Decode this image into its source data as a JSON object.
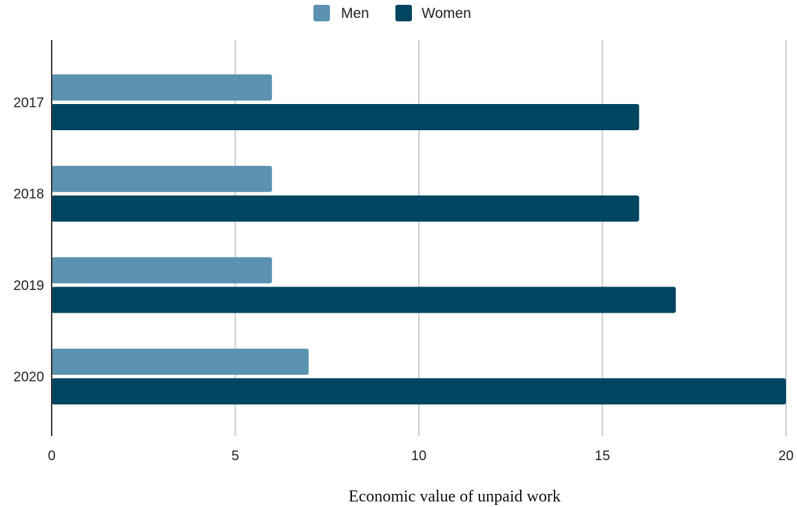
{
  "chart_data": {
    "type": "bar",
    "orientation": "horizontal",
    "categories": [
      "2017",
      "2018",
      "2019",
      "2020"
    ],
    "series": [
      {
        "name": "Men",
        "values": [
          6,
          6,
          6,
          7
        ],
        "color": "#5b92b0"
      },
      {
        "name": "Women",
        "values": [
          16,
          16,
          17,
          20
        ],
        "color": "#004561"
      }
    ],
    "title": "",
    "xlabel": "Economic value of unpaid work",
    "ylabel": "",
    "xlim": [
      0,
      20
    ],
    "xticks": [
      "0",
      "5",
      "10",
      "15",
      "20"
    ],
    "grid": true,
    "legend_position": "top-center"
  }
}
